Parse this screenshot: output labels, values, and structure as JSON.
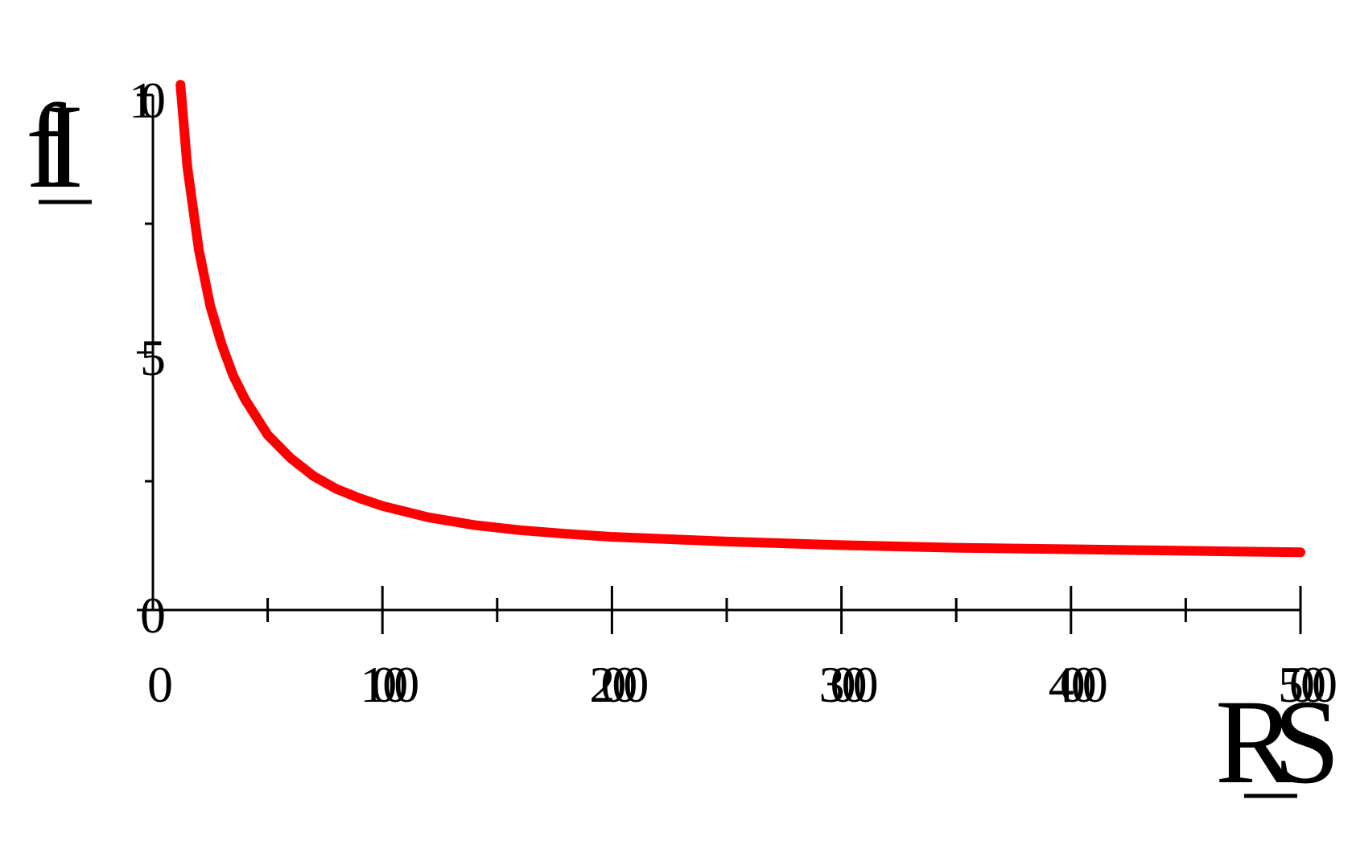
{
  "chart_data": {
    "type": "line",
    "title": "",
    "xlabel": "RS",
    "ylabel": "fI",
    "xlim": [
      0,
      5000
    ],
    "ylim": [
      0,
      10
    ],
    "x_ticks": [
      0,
      1000,
      2000,
      3000,
      4000,
      5000
    ],
    "x_tick_labels": [
      "0",
      "1000",
      "2000",
      "3000",
      "4000",
      "5000"
    ],
    "y_ticks": [
      0,
      5,
      10
    ],
    "y_tick_labels": [
      "0",
      "5",
      "10"
    ],
    "grid": false,
    "series": [
      {
        "color": "#ff0000",
        "x": [
          120,
          150,
          200,
          250,
          300,
          350,
          400,
          500,
          600,
          700,
          800,
          900,
          1000,
          1200,
          1400,
          1600,
          1800,
          2000,
          2500,
          3000,
          3500,
          4000,
          4500,
          5000
        ],
        "y": [
          10.2,
          8.6,
          7.0,
          5.9,
          5.15,
          4.55,
          4.1,
          3.4,
          2.95,
          2.6,
          2.35,
          2.17,
          2.02,
          1.8,
          1.65,
          1.55,
          1.48,
          1.42,
          1.33,
          1.26,
          1.21,
          1.18,
          1.15,
          1.12
        ]
      }
    ]
  }
}
